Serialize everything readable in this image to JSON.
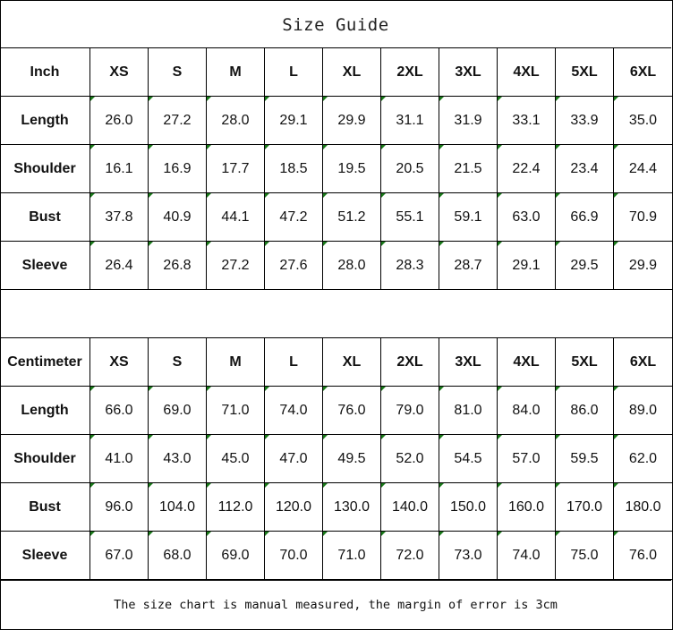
{
  "title": "Size Guide",
  "sizes": [
    "XS",
    "S",
    "M",
    "L",
    "XL",
    "2XL",
    "3XL",
    "4XL",
    "5XL",
    "6XL"
  ],
  "tables": [
    {
      "unit": "Inch",
      "rows": [
        {
          "label": "Length",
          "values": [
            "26.0",
            "27.2",
            "28.0",
            "29.1",
            "29.9",
            "31.1",
            "31.9",
            "33.1",
            "33.9",
            "35.0"
          ]
        },
        {
          "label": "Shoulder",
          "values": [
            "16.1",
            "16.9",
            "17.7",
            "18.5",
            "19.5",
            "20.5",
            "21.5",
            "22.4",
            "23.4",
            "24.4"
          ]
        },
        {
          "label": "Bust",
          "values": [
            "37.8",
            "40.9",
            "44.1",
            "47.2",
            "51.2",
            "55.1",
            "59.1",
            "63.0",
            "66.9",
            "70.9"
          ]
        },
        {
          "label": "Sleeve",
          "values": [
            "26.4",
            "26.8",
            "27.2",
            "27.6",
            "28.0",
            "28.3",
            "28.7",
            "29.1",
            "29.5",
            "29.9"
          ]
        }
      ]
    },
    {
      "unit": "Centimeter",
      "rows": [
        {
          "label": "Length",
          "values": [
            "66.0",
            "69.0",
            "71.0",
            "74.0",
            "76.0",
            "79.0",
            "81.0",
            "84.0",
            "86.0",
            "89.0"
          ]
        },
        {
          "label": "Shoulder",
          "values": [
            "41.0",
            "43.0",
            "45.0",
            "47.0",
            "49.5",
            "52.0",
            "54.5",
            "57.0",
            "59.5",
            "62.0"
          ]
        },
        {
          "label": "Bust",
          "values": [
            "96.0",
            "104.0",
            "112.0",
            "120.0",
            "130.0",
            "140.0",
            "150.0",
            "160.0",
            "170.0",
            "180.0"
          ]
        },
        {
          "label": "Sleeve",
          "values": [
            "67.0",
            "68.0",
            "69.0",
            "70.0",
            "71.0",
            "72.0",
            "73.0",
            "74.0",
            "75.0",
            "76.0"
          ]
        }
      ]
    }
  ],
  "footer": "The size chart is manual measured, the margin of error is 3cm",
  "colors": {
    "cell_corner_marker": "#1a7a1a",
    "border": "#000000"
  }
}
